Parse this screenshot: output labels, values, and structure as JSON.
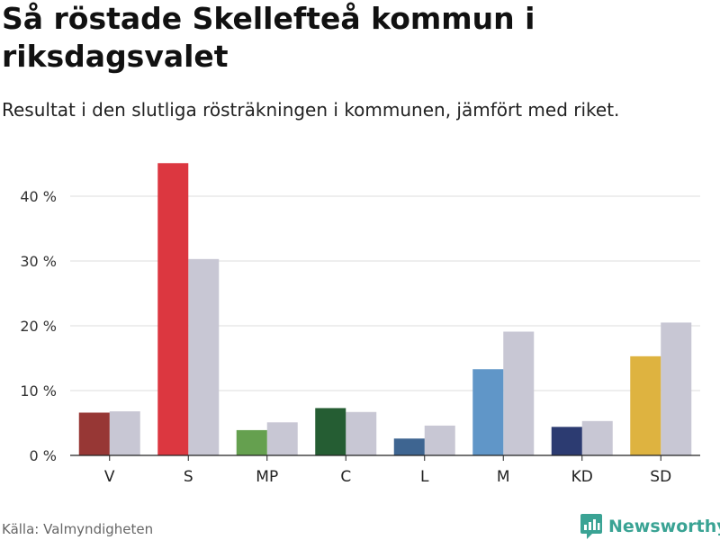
{
  "title": "Så röstade Skellefteå kommun i riksdagsvalet",
  "subtitle": "Resultat i den slutliga rösträkningen i kommunen, jämfört med riket.",
  "source": "Källa: Valmyndigheten",
  "brand": "Newsworthy",
  "colors": {
    "comparison": "#c8c7d4",
    "grid": "#dddddd",
    "axis": "#222222",
    "brand": "#3aa394"
  },
  "chart_data": {
    "type": "bar",
    "title": "Så röstade Skellefteå kommun i riksdagsvalet",
    "xlabel": "",
    "ylabel": "",
    "ylim": [
      0,
      45
    ],
    "yticks": [
      0,
      10,
      20,
      30,
      40
    ],
    "ytick_labels": [
      "0 %",
      "10 %",
      "20 %",
      "30 %",
      "40 %"
    ],
    "grid": true,
    "categories": [
      "V",
      "S",
      "MP",
      "C",
      "L",
      "M",
      "KD",
      "SD"
    ],
    "series": [
      {
        "name": "Skellefteå kommun",
        "values": [
          6.6,
          45.1,
          3.9,
          7.3,
          2.6,
          13.3,
          4.4,
          15.3
        ],
        "colors": [
          "#973735",
          "#dc3740",
          "#65a04f",
          "#255d33",
          "#3e6591",
          "#6096c8",
          "#2c3b71",
          "#deb340"
        ]
      },
      {
        "name": "Riket",
        "values": [
          6.8,
          30.3,
          5.1,
          6.7,
          4.6,
          19.1,
          5.3,
          20.5
        ],
        "color": "#c8c7d4"
      }
    ]
  }
}
